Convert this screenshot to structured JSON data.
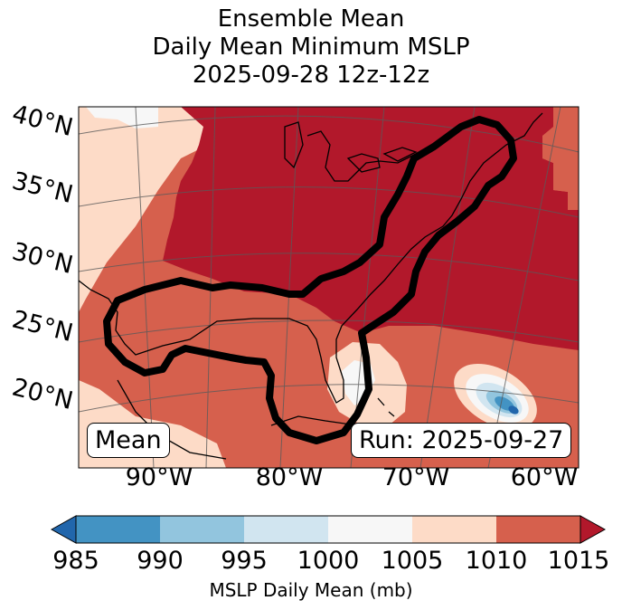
{
  "title": {
    "line1": "Ensemble Mean",
    "line2": "Daily Mean Minimum MSLP",
    "line3": "2025-09-28 12z-12z"
  },
  "map": {
    "lat_labels": [
      "40°N",
      "35°N",
      "30°N",
      "25°N",
      "20°N"
    ],
    "lon_labels": [
      "90°W",
      "80°W",
      "70°W",
      "60°W"
    ],
    "mean_label": "Mean",
    "run_label": "Run: 2025-09-27",
    "colors": {
      "c985": "#2166ac",
      "c990": "#4393c3",
      "c995": "#92c5de",
      "c1000": "#d1e5f0",
      "c1005": "#f7f7f7",
      "c1010": "#fddbc7",
      "c1015": "#d6604d",
      "over": "#b2182b",
      "outline": "#000000"
    }
  },
  "colorbar": {
    "ticks": [
      "985",
      "990",
      "995",
      "1000",
      "1005",
      "1010",
      "1015"
    ],
    "label": "MSLP Daily Mean (mb)",
    "colors": [
      "#4393c3",
      "#92c5de",
      "#d1e5f0",
      "#f7f7f7",
      "#fddbc7",
      "#d6604d"
    ],
    "under_color": "#2166ac",
    "over_color": "#b2182b"
  }
}
